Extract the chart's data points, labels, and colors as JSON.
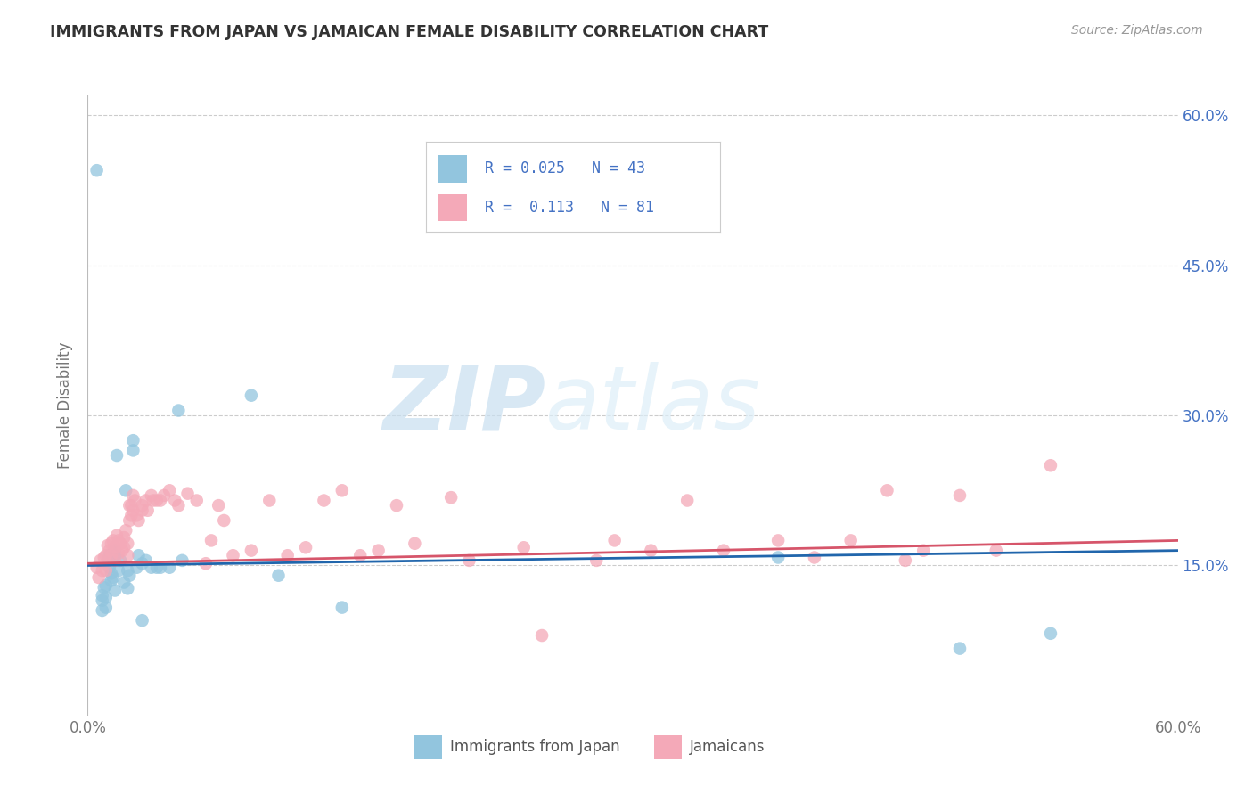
{
  "title": "IMMIGRANTS FROM JAPAN VS JAMAICAN FEMALE DISABILITY CORRELATION CHART",
  "source": "Source: ZipAtlas.com",
  "ylabel": "Female Disability",
  "watermark_zip": "ZIP",
  "watermark_atlas": "atlas",
  "xlim": [
    0.0,
    60.0
  ],
  "ylim": [
    0.0,
    62.0
  ],
  "yticks": [
    15.0,
    30.0,
    45.0,
    60.0
  ],
  "ytick_labels": [
    "15.0%",
    "30.0%",
    "45.0%",
    "60.0%"
  ],
  "color_blue": "#92c5de",
  "color_pink": "#f4a9b8",
  "line_color_blue": "#2166ac",
  "line_color_pink": "#d6556a",
  "background_color": "#ffffff",
  "blue_scatter": [
    [
      0.5,
      54.5
    ],
    [
      0.8,
      11.5
    ],
    [
      0.8,
      12.0
    ],
    [
      0.8,
      10.5
    ],
    [
      0.9,
      12.8
    ],
    [
      1.0,
      10.8
    ],
    [
      1.0,
      13.0
    ],
    [
      1.0,
      11.8
    ],
    [
      1.1,
      15.5
    ],
    [
      1.2,
      16.0
    ],
    [
      1.2,
      14.8
    ],
    [
      1.3,
      14.2
    ],
    [
      1.3,
      13.5
    ],
    [
      1.4,
      13.8
    ],
    [
      1.5,
      16.0
    ],
    [
      1.5,
      12.5
    ],
    [
      1.5,
      16.5
    ],
    [
      1.6,
      26.0
    ],
    [
      1.7,
      14.5
    ],
    [
      1.8,
      15.5
    ],
    [
      2.0,
      13.3
    ],
    [
      2.1,
      22.5
    ],
    [
      2.2,
      12.7
    ],
    [
      2.2,
      14.5
    ],
    [
      2.3,
      14.0
    ],
    [
      2.5,
      26.5
    ],
    [
      2.5,
      27.5
    ],
    [
      2.7,
      14.8
    ],
    [
      2.8,
      16.0
    ],
    [
      3.0,
      15.2
    ],
    [
      3.0,
      9.5
    ],
    [
      3.2,
      15.5
    ],
    [
      3.5,
      14.8
    ],
    [
      3.8,
      14.8
    ],
    [
      4.0,
      14.8
    ],
    [
      4.5,
      14.8
    ],
    [
      5.0,
      30.5
    ],
    [
      5.2,
      15.5
    ],
    [
      9.0,
      32.0
    ],
    [
      10.5,
      14.0
    ],
    [
      14.0,
      10.8
    ],
    [
      38.0,
      15.8
    ],
    [
      48.0,
      6.7
    ],
    [
      53.0,
      8.2
    ]
  ],
  "pink_scatter": [
    [
      0.5,
      14.8
    ],
    [
      0.6,
      13.8
    ],
    [
      0.7,
      15.5
    ],
    [
      0.8,
      14.5
    ],
    [
      0.9,
      15.8
    ],
    [
      1.0,
      16.0
    ],
    [
      1.0,
      14.5
    ],
    [
      1.1,
      17.0
    ],
    [
      1.2,
      16.5
    ],
    [
      1.3,
      17.2
    ],
    [
      1.3,
      16.0
    ],
    [
      1.4,
      17.5
    ],
    [
      1.5,
      16.8
    ],
    [
      1.5,
      15.5
    ],
    [
      1.6,
      18.0
    ],
    [
      1.7,
      17.5
    ],
    [
      1.7,
      16.2
    ],
    [
      1.8,
      17.2
    ],
    [
      1.9,
      16.5
    ],
    [
      2.0,
      17.8
    ],
    [
      2.0,
      16.8
    ],
    [
      2.1,
      18.5
    ],
    [
      2.2,
      17.2
    ],
    [
      2.2,
      16.0
    ],
    [
      2.3,
      21.0
    ],
    [
      2.3,
      19.5
    ],
    [
      2.4,
      21.0
    ],
    [
      2.4,
      20.0
    ],
    [
      2.5,
      22.0
    ],
    [
      2.5,
      20.5
    ],
    [
      2.6,
      21.5
    ],
    [
      2.7,
      20.0
    ],
    [
      2.8,
      19.5
    ],
    [
      3.0,
      20.5
    ],
    [
      3.0,
      21.0
    ],
    [
      3.2,
      21.5
    ],
    [
      3.3,
      20.5
    ],
    [
      3.5,
      22.0
    ],
    [
      3.6,
      21.5
    ],
    [
      3.8,
      21.5
    ],
    [
      4.0,
      21.5
    ],
    [
      4.2,
      22.0
    ],
    [
      4.5,
      22.5
    ],
    [
      4.8,
      21.5
    ],
    [
      5.0,
      21.0
    ],
    [
      5.5,
      22.2
    ],
    [
      6.0,
      21.5
    ],
    [
      6.5,
      15.2
    ],
    [
      6.8,
      17.5
    ],
    [
      7.2,
      21.0
    ],
    [
      7.5,
      19.5
    ],
    [
      8.0,
      16.0
    ],
    [
      9.0,
      16.5
    ],
    [
      10.0,
      21.5
    ],
    [
      11.0,
      16.0
    ],
    [
      12.0,
      16.8
    ],
    [
      13.0,
      21.5
    ],
    [
      14.0,
      22.5
    ],
    [
      15.0,
      16.0
    ],
    [
      16.0,
      16.5
    ],
    [
      17.0,
      21.0
    ],
    [
      18.0,
      17.2
    ],
    [
      20.0,
      21.8
    ],
    [
      21.0,
      15.5
    ],
    [
      24.0,
      16.8
    ],
    [
      25.0,
      8.0
    ],
    [
      28.0,
      15.5
    ],
    [
      29.0,
      17.5
    ],
    [
      31.0,
      16.5
    ],
    [
      33.0,
      21.5
    ],
    [
      35.0,
      16.5
    ],
    [
      38.0,
      17.5
    ],
    [
      40.0,
      15.8
    ],
    [
      42.0,
      17.5
    ],
    [
      44.0,
      22.5
    ],
    [
      45.0,
      15.5
    ],
    [
      46.0,
      16.5
    ],
    [
      48.0,
      22.0
    ],
    [
      50.0,
      16.5
    ],
    [
      53.0,
      25.0
    ]
  ],
  "blue_line_x": [
    0.0,
    60.0
  ],
  "blue_line_y": [
    15.0,
    16.5
  ],
  "pink_line_x": [
    0.0,
    60.0
  ],
  "pink_line_y": [
    15.2,
    17.5
  ]
}
